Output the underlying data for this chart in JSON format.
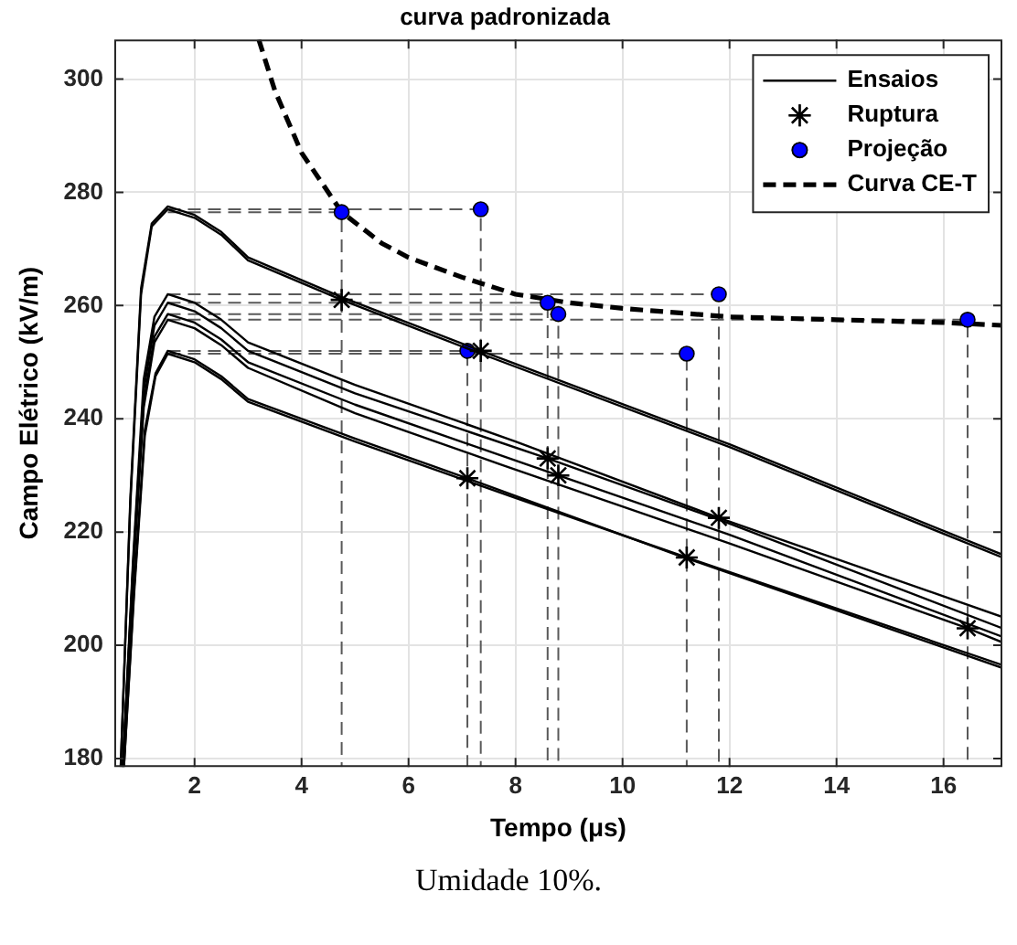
{
  "chart_data": {
    "type": "line",
    "title": "curva padronizada",
    "xlabel": "Tempo (μs)",
    "ylabel": "Campo Elétrico (kV/m)",
    "annotations": [
      "Umidade 10%."
    ],
    "xlim": [
      0.5,
      17.1
    ],
    "xticks": [
      2,
      4,
      6,
      8,
      10,
      12,
      14,
      16
    ],
    "ylim": [
      178.5,
      307
    ],
    "yticks": [
      180,
      200,
      220,
      240,
      260,
      280,
      300
    ],
    "grid": true,
    "legend": "top right",
    "marker": "none",
    "line_style": "solid",
    "series": [
      {
        "name": "Ensaios",
        "color": "#000000",
        "x": [
          0.62,
          0.8,
          1.0,
          1.2,
          1.5,
          2.0,
          2.5,
          3.0,
          4.75,
          7.35,
          12,
          17.1
        ],
        "values": [
          178.5,
          225,
          262,
          274,
          277,
          275.5,
          272.5,
          268,
          261,
          251.5,
          235,
          215.5
        ]
      },
      {
        "color": "#000000",
        "x": [
          0.62,
          0.8,
          1.0,
          1.2,
          1.5,
          2.0,
          2.5,
          3.0,
          4.75,
          7.35,
          12,
          17.1
        ],
        "values": [
          178.5,
          226,
          263,
          274.5,
          277.5,
          276,
          273,
          268.5,
          261.5,
          252,
          235.5,
          216
        ]
      },
      {
        "color": "#000000",
        "x": [
          0.66,
          0.85,
          1.05,
          1.25,
          1.5,
          2.0,
          2.5,
          3.0,
          5,
          8,
          11.8,
          17.1
        ],
        "values": [
          178.5,
          215,
          247,
          258,
          262,
          260.5,
          257.5,
          253.5,
          246,
          236,
          222.5,
          205
        ]
      },
      {
        "color": "#000000",
        "x": [
          0.66,
          0.85,
          1.05,
          1.25,
          1.5,
          2.0,
          2.5,
          3.0,
          5,
          8.6,
          12,
          17.1
        ],
        "values": [
          178.5,
          214,
          245,
          256.5,
          260.5,
          259,
          256,
          252,
          244.5,
          233,
          221.5,
          203
        ]
      },
      {
        "color": "#000000",
        "x": [
          0.66,
          0.85,
          1.05,
          1.25,
          1.5,
          2.0,
          2.5,
          3.0,
          5,
          8.8,
          12,
          17.1
        ],
        "values": [
          178.5,
          213,
          243,
          254.5,
          258.5,
          257,
          254,
          250,
          242.5,
          230,
          219.5,
          201.5
        ]
      },
      {
        "color": "#000000",
        "x": [
          0.66,
          0.85,
          1.05,
          1.25,
          1.5,
          2.0,
          2.5,
          3.0,
          5,
          8,
          12,
          16.45,
          17.1
        ],
        "values": [
          178.5,
          212,
          242,
          253.5,
          257.5,
          256,
          253,
          249,
          241,
          231,
          218,
          203,
          200.5
        ]
      },
      {
        "color": "#000000",
        "x": [
          0.68,
          0.87,
          1.07,
          1.27,
          1.5,
          2.0,
          2.5,
          3.0,
          5,
          7.1,
          11,
          17.1
        ],
        "values": [
          178.5,
          210,
          238,
          248,
          252,
          250.5,
          247.5,
          243.5,
          236.5,
          229.5,
          216,
          196
        ]
      },
      {
        "color": "#000000",
        "x": [
          0.68,
          0.87,
          1.07,
          1.27,
          1.5,
          2.0,
          2.5,
          3.0,
          5,
          8,
          11.2,
          17.1
        ],
        "values": [
          178.5,
          209,
          237,
          247.5,
          251.5,
          250,
          247,
          243,
          236,
          226,
          215.5,
          196.5
        ]
      },
      {
        "name": "Ruptura",
        "type": "scatter",
        "marker": "cross",
        "color": "#000000",
        "x": [
          4.75,
          7.35,
          7.1,
          8.6,
          8.8,
          11.2,
          11.8,
          16.45
        ],
        "values": [
          261,
          252,
          229.5,
          233,
          230,
          215.5,
          222.5,
          203
        ]
      },
      {
        "name": "Projeção",
        "type": "scatter",
        "marker": "circle",
        "color": "#0000ff",
        "x": [
          4.75,
          7.35,
          7.1,
          8.6,
          8.8,
          11.2,
          11.8,
          16.45
        ],
        "values": [
          276.5,
          277,
          252,
          260.5,
          258.5,
          251.5,
          262,
          257.5
        ]
      },
      {
        "name": "Curva CE-T",
        "color": "#000000",
        "line_style": "dashed",
        "x": [
          3.2,
          3.5,
          4,
          4.75,
          5.5,
          6,
          7,
          8,
          9,
          10,
          12,
          14,
          16,
          17.1
        ],
        "values": [
          307,
          298,
          287,
          276.5,
          271,
          268.5,
          265,
          262,
          260.5,
          259.5,
          258,
          257.5,
          257,
          256.5
        ]
      },
      {
        "color": "#595959",
        "line_style": "dashed",
        "x": [
          1.5,
          4.75,
          4.75
        ],
        "values": [
          276.5,
          276.5,
          178.5
        ]
      },
      {
        "color": "#595959",
        "line_style": "dashed",
        "x": [
          1.5,
          7.35,
          7.35
        ],
        "values": [
          277,
          277,
          178.5
        ]
      },
      {
        "color": "#595959",
        "line_style": "dashed",
        "x": [
          1.5,
          7.1,
          7.1
        ],
        "values": [
          252,
          252,
          178.5
        ]
      },
      {
        "color": "#595959",
        "line_style": "dashed",
        "x": [
          1.5,
          8.6,
          8.6
        ],
        "values": [
          260.5,
          260.5,
          178.5
        ]
      },
      {
        "color": "#595959",
        "line_style": "dashed",
        "x": [
          1.5,
          8.8,
          8.8
        ],
        "values": [
          258.5,
          258.5,
          178.5
        ]
      },
      {
        "color": "#595959",
        "line_style": "dashed",
        "x": [
          1.5,
          11.2,
          11.2
        ],
        "values": [
          251.5,
          251.5,
          178.5
        ]
      },
      {
        "color": "#595959",
        "line_style": "dashed",
        "x": [
          1.5,
          11.8,
          11.8
        ],
        "values": [
          262,
          262,
          178.5
        ]
      },
      {
        "color": "#595959",
        "line_style": "dashed",
        "x": [
          1.5,
          16.45,
          16.45
        ],
        "values": [
          257.5,
          257.5,
          178.5
        ]
      }
    ]
  }
}
